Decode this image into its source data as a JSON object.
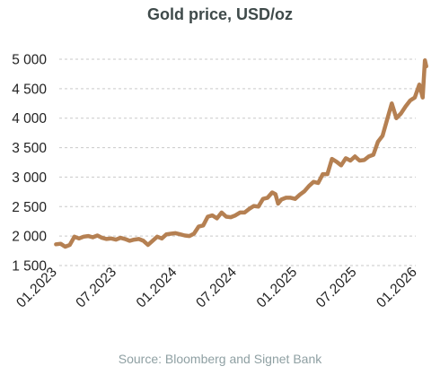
{
  "colors": {
    "line": "#b58052",
    "grid": "#c9c9c9",
    "title": "#3f4a4a",
    "source": "#8fa0a3"
  },
  "chart_data": {
    "type": "line",
    "title": "Gold price, USD/oz",
    "source": "Source: Bloomberg and Signet Bank",
    "xlabel": "",
    "ylabel": "",
    "ylim": [
      1500,
      5000
    ],
    "xlim": [
      "2023-01",
      "2026-01"
    ],
    "y_ticks": [
      "5 000",
      "4 500",
      "4 000",
      "3 500",
      "3 000",
      "2 500",
      "2 000",
      "1 500"
    ],
    "x_ticks": [
      "01.2023",
      "07.2023",
      "01.2024",
      "07.2024",
      "01.2025",
      "07.2025",
      "01.2026"
    ],
    "grid": true,
    "legend": "none",
    "series": [
      {
        "x": [
          "2023-01-02",
          "2023-01-16",
          "2023-01-30",
          "2023-02-13",
          "2023-02-27",
          "2023-03-13",
          "2023-03-27",
          "2023-04-10",
          "2023-04-24",
          "2023-05-08",
          "2023-05-22",
          "2023-06-05",
          "2023-06-19",
          "2023-07-03",
          "2023-07-17",
          "2023-07-31",
          "2023-08-14",
          "2023-08-28",
          "2023-09-11",
          "2023-09-25",
          "2023-10-09",
          "2023-10-23",
          "2023-11-06",
          "2023-11-20",
          "2023-12-04",
          "2023-12-18",
          "2024-01-01",
          "2024-01-15",
          "2024-01-29",
          "2024-02-12",
          "2024-02-26",
          "2024-03-11",
          "2024-03-25",
          "2024-04-08",
          "2024-04-22",
          "2024-05-06",
          "2024-05-20",
          "2024-06-03",
          "2024-06-17",
          "2024-07-01",
          "2024-07-15",
          "2024-07-29",
          "2024-08-12",
          "2024-08-26",
          "2024-09-09",
          "2024-09-23",
          "2024-10-07",
          "2024-10-21",
          "2024-10-31",
          "2024-11-08",
          "2024-11-18",
          "2024-12-02",
          "2024-12-16",
          "2024-12-30",
          "2025-01-13",
          "2025-01-27",
          "2025-02-10",
          "2025-02-24",
          "2025-03-10",
          "2025-03-24",
          "2025-04-07",
          "2025-04-21",
          "2025-05-05",
          "2025-05-19",
          "2025-06-02",
          "2025-06-16",
          "2025-06-30",
          "2025-07-14",
          "2025-07-28",
          "2025-08-11",
          "2025-08-25",
          "2025-09-08",
          "2025-09-22",
          "2025-10-06",
          "2025-10-20",
          "2025-11-03",
          "2025-11-17",
          "2025-12-01",
          "2025-12-15",
          "2025-12-29",
          "2026-01-12",
          "2026-01-22",
          "2026-01-29",
          "2026-02-02"
        ],
        "y": [
          1860,
          1870,
          1820,
          1850,
          1990,
          1960,
          1990,
          2000,
          1980,
          2010,
          1970,
          1950,
          1960,
          1940,
          1970,
          1950,
          1920,
          1940,
          1950,
          1920,
          1850,
          1920,
          1990,
          1960,
          2030,
          2040,
          2050,
          2030,
          2010,
          2000,
          2040,
          2160,
          2180,
          2330,
          2350,
          2300,
          2400,
          2330,
          2320,
          2350,
          2400,
          2400,
          2460,
          2510,
          2500,
          2630,
          2650,
          2740,
          2710,
          2550,
          2620,
          2650,
          2650,
          2630,
          2700,
          2760,
          2850,
          2920,
          2900,
          3050,
          3050,
          3310,
          3260,
          3200,
          3320,
          3280,
          3350,
          3280,
          3290,
          3350,
          3380,
          3600,
          3700,
          3980,
          4250,
          4000,
          4080,
          4200,
          4300,
          4350,
          4570,
          4350,
          4980,
          4880
        ]
      }
    ]
  }
}
